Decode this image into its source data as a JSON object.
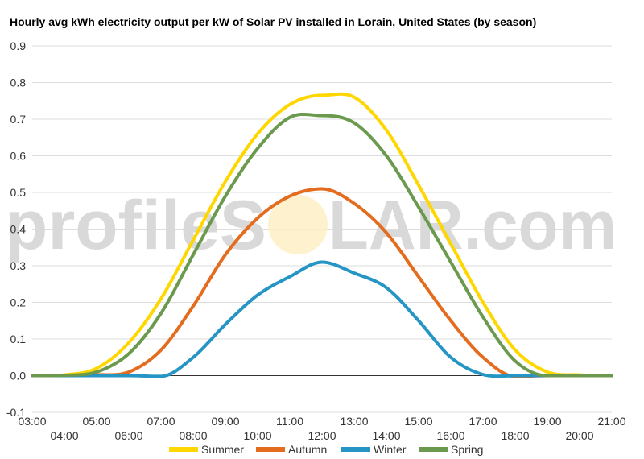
{
  "chart_data": {
    "type": "line",
    "title": "Hourly avg kWh electricity output per kW of Solar PV installed in Lorain, United States (by season)",
    "xlabel": "",
    "ylabel": "",
    "ylim": [
      -0.1,
      0.9
    ],
    "y_ticks": [
      "-0.1",
      "0.0",
      "0.1",
      "0.2",
      "0.3",
      "0.4",
      "0.5",
      "0.6",
      "0.7",
      "0.8",
      "0.9"
    ],
    "x_ticks": [
      "03:00",
      "04:00",
      "05:00",
      "06:00",
      "07:00",
      "08:00",
      "09:00",
      "10:00",
      "11:00",
      "12:00",
      "13:00",
      "14:00",
      "15:00",
      "16:00",
      "17:00",
      "18:00",
      "19:00",
      "20:00",
      "21:00"
    ],
    "grid": true,
    "legend_position": "bottom",
    "x": [
      3,
      4,
      5,
      6,
      7,
      8,
      9,
      10,
      11,
      12,
      13,
      14,
      15,
      16,
      17,
      18,
      19,
      20,
      21
    ],
    "series": [
      {
        "name": "Summer",
        "color": "#ffd700",
        "values": [
          0.0,
          0.002,
          0.02,
          0.09,
          0.21,
          0.37,
          0.53,
          0.66,
          0.74,
          0.765,
          0.76,
          0.67,
          0.52,
          0.36,
          0.2,
          0.07,
          0.01,
          0.002,
          0.0
        ]
      },
      {
        "name": "Autumn",
        "color": "#e36c1e",
        "values": [
          0.0,
          0.0,
          0.002,
          0.01,
          0.07,
          0.19,
          0.33,
          0.43,
          0.49,
          0.51,
          0.47,
          0.39,
          0.27,
          0.15,
          0.05,
          -0.002,
          0.0,
          0.0,
          0.0
        ]
      },
      {
        "name": "Winter",
        "color": "#2495c4",
        "values": [
          0.0,
          0.0,
          0.0,
          0.0,
          -0.002,
          0.05,
          0.14,
          0.22,
          0.27,
          0.31,
          0.28,
          0.24,
          0.15,
          0.05,
          0.003,
          0.0,
          0.0,
          0.0,
          0.0
        ]
      },
      {
        "name": "Spring",
        "color": "#6b9a4e",
        "values": [
          0.0,
          0.001,
          0.01,
          0.06,
          0.17,
          0.33,
          0.49,
          0.62,
          0.705,
          0.71,
          0.69,
          0.6,
          0.46,
          0.31,
          0.16,
          0.04,
          0.0,
          0.0,
          0.0
        ]
      }
    ]
  },
  "watermark": {
    "text_left": "profileS",
    "text_right": "LAR.com",
    "sun_color": "#fdf0c4"
  }
}
